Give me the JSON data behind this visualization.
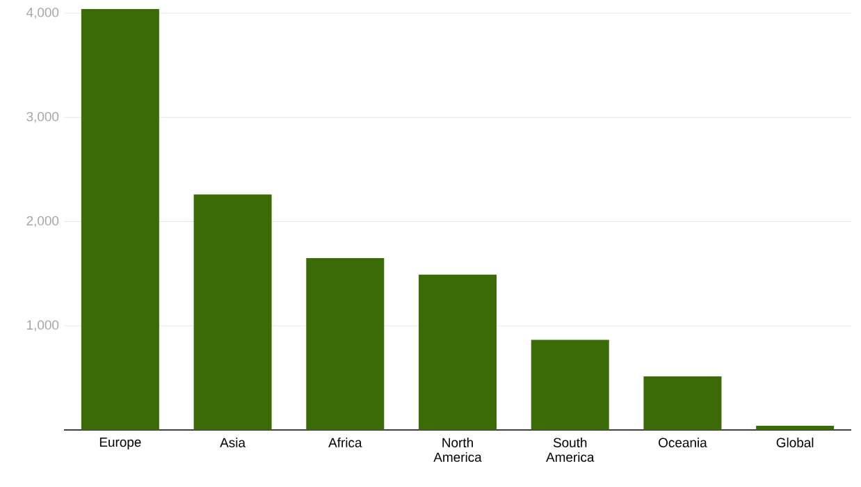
{
  "chart_data": {
    "type": "bar",
    "categories": [
      "Europe",
      "Asia",
      "Africa",
      "North America",
      "South America",
      "Oceania",
      "Global"
    ],
    "values": [
      4040,
      2260,
      1650,
      1490,
      865,
      515,
      40
    ],
    "color": "#3a6b06",
    "ylim": [
      0,
      4060
    ],
    "yticks": [
      {
        "value": 1000,
        "label": "1,000"
      },
      {
        "value": 2000,
        "label": "2,000"
      },
      {
        "value": 3000,
        "label": "3,000"
      },
      {
        "value": 4000,
        "label": "4,000"
      }
    ],
    "grid": "y"
  }
}
